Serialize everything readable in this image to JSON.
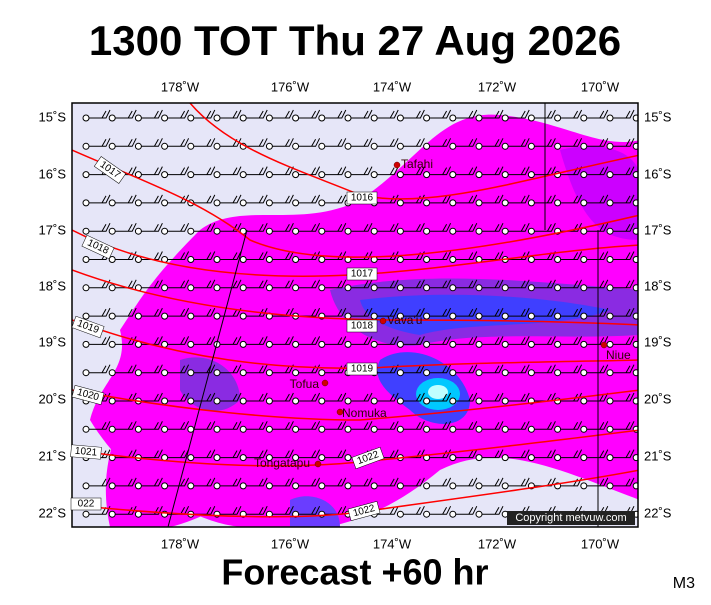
{
  "header": {
    "title": "1300 TOT Thu 27 Aug 2026"
  },
  "map": {
    "lon_labels": [
      "178˚W",
      "176˚W",
      "174˚W",
      "172˚W",
      "170˚W"
    ],
    "lat_labels": [
      "15˚S",
      "16˚S",
      "17˚S",
      "18˚S",
      "19˚S",
      "20˚S",
      "21˚S",
      "22˚S"
    ],
    "places": [
      {
        "label": "Tafahi"
      },
      {
        "label": "Vava'u"
      },
      {
        "label": "Niue"
      },
      {
        "label": "Tofua"
      },
      {
        "label": "Nomuka"
      },
      {
        "label": "Tongatapu"
      }
    ],
    "isobar_labels": [
      "1017",
      "1016",
      "1018",
      "1017",
      "1018",
      "1019",
      "1019",
      "1020",
      "1021",
      "1022",
      "022",
      "1022"
    ],
    "copyright": "Copyright metvuw.com"
  },
  "footer": {
    "forecast": "Forecast +60 hr",
    "model": "M3"
  }
}
